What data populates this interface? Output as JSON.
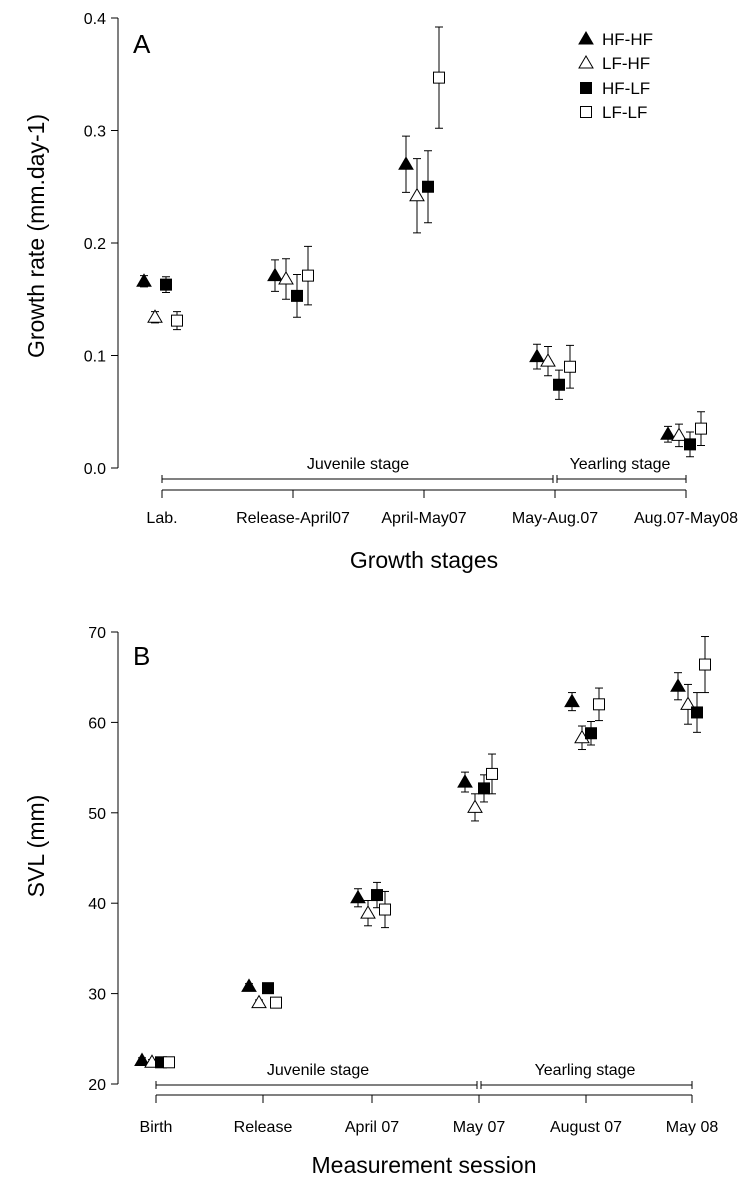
{
  "chart_data": [
    {
      "type": "scatter",
      "panel_label": "A",
      "xlabel": "Growth stages",
      "ylabel": "Growth rate (mm.day-1)",
      "categories": [
        "Lab.",
        "Release-April07",
        "April-May07",
        "May-Aug.07",
        "Aug.07-May08"
      ],
      "ylim": [
        0,
        0.4
      ],
      "yticks": [
        "0.0",
        "0.1",
        "0.2",
        "0.3",
        "0.4"
      ],
      "grid": false,
      "legend_position": "top-right",
      "series": [
        {
          "name": "HF-HF",
          "marker": "filled-triangle",
          "values": [
            0.166,
            0.171,
            0.27,
            0.099,
            0.03
          ],
          "error": [
            0.005,
            0.014,
            0.025,
            0.011,
            0.007
          ]
        },
        {
          "name": "LF-HF",
          "marker": "open-triangle",
          "values": [
            0.134,
            0.168,
            0.242,
            0.095,
            0.029
          ],
          "error": [
            0.005,
            0.018,
            0.033,
            0.013,
            0.01
          ]
        },
        {
          "name": "HF-LF",
          "marker": "filled-square",
          "values": [
            0.163,
            0.153,
            0.25,
            0.074,
            0.021
          ],
          "error": [
            0.007,
            0.019,
            0.032,
            0.013,
            0.011
          ]
        },
        {
          "name": "LF-LF",
          "marker": "open-square",
          "values": [
            0.131,
            0.171,
            0.347,
            0.09,
            0.035
          ],
          "error": [
            0.008,
            0.026,
            0.045,
            0.019,
            0.015
          ]
        }
      ],
      "stages": [
        {
          "label": "Juvenile stage",
          "from": 0,
          "to": 3
        },
        {
          "label": "Yearling stage",
          "from": 3,
          "to": 4
        }
      ]
    },
    {
      "type": "scatter",
      "panel_label": "B",
      "xlabel": "Measurement session",
      "ylabel": "SVL (mm)",
      "categories": [
        "Birth",
        "Release",
        "April 07",
        "May 07",
        "August 07",
        "May 08"
      ],
      "ylim": [
        20,
        70
      ],
      "yticks": [
        "20",
        "30",
        "40",
        "50",
        "60",
        "70"
      ],
      "grid": false,
      "series": [
        {
          "name": "HF-HF",
          "marker": "filled-triangle",
          "values": [
            22.6,
            30.8,
            40.6,
            53.4,
            62.3,
            64.0
          ],
          "error": [
            0.3,
            0.3,
            1.0,
            1.1,
            1.0,
            1.5
          ]
        },
        {
          "name": "LF-HF",
          "marker": "open-triangle",
          "values": [
            22.4,
            29.0,
            38.9,
            50.6,
            58.3,
            62.0
          ],
          "error": [
            0.3,
            0.3,
            1.4,
            1.5,
            1.3,
            2.2
          ]
        },
        {
          "name": "HF-LF",
          "marker": "filled-square",
          "values": [
            22.4,
            30.6,
            40.9,
            52.7,
            58.8,
            61.1
          ],
          "error": [
            0.3,
            0.3,
            1.4,
            1.5,
            1.3,
            2.2
          ]
        },
        {
          "name": "LF-LF",
          "marker": "open-square",
          "values": [
            22.4,
            29.0,
            39.3,
            54.3,
            62.0,
            66.4
          ],
          "error": [
            0.3,
            0.3,
            2.0,
            2.2,
            1.8,
            3.1
          ]
        }
      ],
      "stages": [
        {
          "label": "Juvenile stage",
          "from": 0,
          "to": 3
        },
        {
          "label": "Yearling stage",
          "from": 3,
          "to": 5
        }
      ]
    }
  ]
}
